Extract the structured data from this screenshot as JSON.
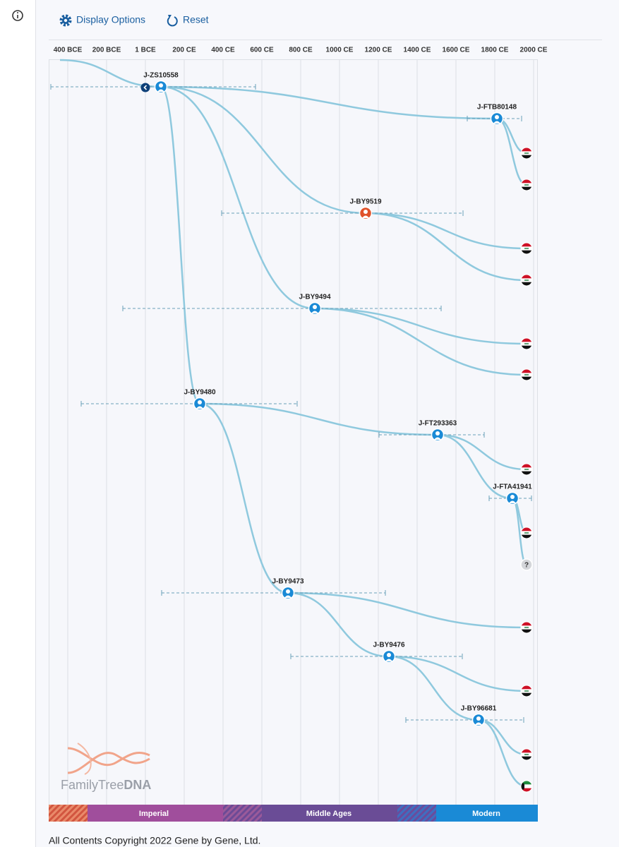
{
  "toolbar": {
    "display_options": "Display Options",
    "reset": "Reset"
  },
  "timeline": {
    "axis_labels": [
      "400 BCE",
      "200 BCE",
      "1 BCE",
      "200 CE",
      "400 CE",
      "600 CE",
      "800 CE",
      "1000 CE",
      "1200 CE",
      "1400 CE",
      "1600 CE",
      "1800 CE",
      "2000 CE"
    ]
  },
  "tree": {
    "nodes": [
      {
        "label": "J-ZS10558"
      },
      {
        "label": "J-FTB80148"
      },
      {
        "label": "J-BY9519"
      },
      {
        "label": "J-BY9494"
      },
      {
        "label": "J-BY9480"
      },
      {
        "label": "J-FT293363"
      },
      {
        "label": "J-FTA41941"
      },
      {
        "label": "J-BY9473"
      },
      {
        "label": "J-BY9476"
      },
      {
        "label": "J-BY96681"
      }
    ],
    "unknown_marker": "?"
  },
  "eras": [
    "Imperial",
    "Middle Ages",
    "Modern"
  ],
  "logo": {
    "brand": "FamilyTree",
    "suffix": "DNA"
  },
  "footer": "All Contents Copyright 2022 Gene by Gene, Ltd."
}
